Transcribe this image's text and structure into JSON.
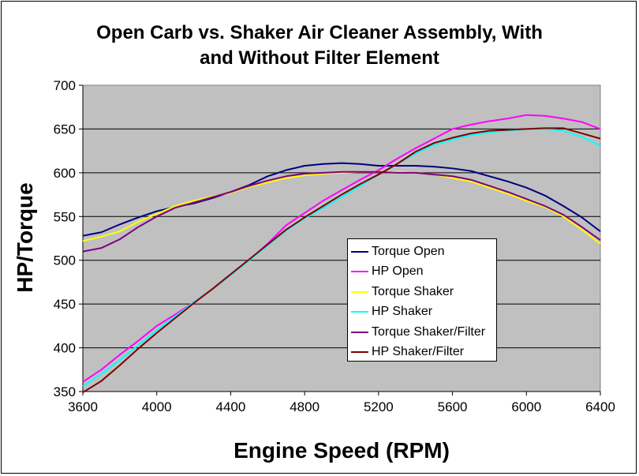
{
  "chart_data": {
    "type": "line",
    "title": [
      "Open Carb vs. Shaker Air Cleaner Assembly, With",
      "and Without Filter Element"
    ],
    "xlabel": "Engine Speed (RPM)",
    "ylabel": "HP/Torque",
    "xlim": [
      3600,
      6400
    ],
    "ylim": [
      350,
      700
    ],
    "xticks": [
      "3600",
      "4000",
      "4400",
      "4800",
      "5200",
      "5600",
      "6000",
      "6400"
    ],
    "yticks": [
      "350",
      "400",
      "450",
      "500",
      "550",
      "600",
      "650",
      "700"
    ],
    "grid": "horizontal",
    "legend_position": "center-right",
    "x": [
      3600,
      3700,
      3800,
      3900,
      4000,
      4100,
      4200,
      4300,
      4400,
      4500,
      4600,
      4700,
      4800,
      4900,
      5000,
      5100,
      5200,
      5300,
      5400,
      5500,
      5600,
      5700,
      5800,
      5900,
      6000,
      6100,
      6200,
      6300,
      6400
    ],
    "series": [
      {
        "name": "Torque Open",
        "color": "#000080",
        "values": [
          528,
          532,
          541,
          549,
          556,
          561,
          565,
          571,
          578,
          586,
          596,
          603,
          608,
          610,
          611,
          610,
          608,
          608,
          608,
          607,
          605,
          602,
          596,
          590,
          583,
          574,
          562,
          549,
          533
        ]
      },
      {
        "name": "HP Open",
        "color": "#ff00ff",
        "values": [
          361,
          375,
          392,
          408,
          425,
          438,
          452,
          467,
          484,
          500,
          519,
          540,
          554,
          568,
          580,
          592,
          603,
          616,
          628,
          639,
          650,
          655,
          659,
          662,
          666,
          665,
          662,
          658,
          650
        ]
      },
      {
        "name": "Torque Shaker",
        "color": "#ffff00",
        "values": [
          522,
          527,
          533,
          544,
          553,
          562,
          568,
          573,
          577,
          584,
          589,
          594,
          597,
          599,
          600,
          601,
          601,
          601,
          600,
          598,
          594,
          590,
          583,
          576,
          568,
          561,
          550,
          535,
          519
        ]
      },
      {
        "name": "HP Shaker",
        "color": "#00ffff",
        "values": [
          356,
          370,
          386,
          403,
          420,
          436,
          452,
          467,
          483,
          500,
          517,
          534,
          548,
          560,
          572,
          585,
          598,
          610,
          622,
          632,
          638,
          643,
          646,
          648,
          650,
          650,
          648,
          641,
          631
        ]
      },
      {
        "name": "Torque Shaker/Filter",
        "color": "#800080",
        "values": [
          510,
          514,
          524,
          538,
          550,
          560,
          566,
          572,
          578,
          585,
          591,
          596,
          599,
          600,
          601,
          601,
          601,
          600,
          600,
          598,
          596,
          592,
          585,
          578,
          570,
          562,
          552,
          538,
          523
        ]
      },
      {
        "name": "HP Shaker/Filter",
        "color": "#800000",
        "values": [
          349,
          362,
          380,
          399,
          417,
          434,
          451,
          467,
          484,
          501,
          518,
          535,
          549,
          562,
          575,
          587,
          598,
          610,
          624,
          634,
          640,
          645,
          648,
          649,
          650,
          651,
          651,
          645,
          639
        ]
      }
    ]
  }
}
